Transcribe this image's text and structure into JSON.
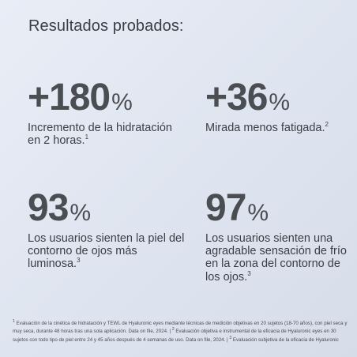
{
  "title": "Resultados probados:",
  "stats": [
    {
      "value": "+180",
      "unit": "%",
      "description": "Incremento de la hidratación en 2 horas.",
      "ref": "1"
    },
    {
      "value": "+36",
      "unit": "%",
      "description": "Mirada menos fatigada.",
      "ref": "2"
    },
    {
      "value": "93",
      "unit": "%",
      "description": "Los usuarios sienten la piel del contorno de ojos más luminosa.",
      "ref": "3"
    },
    {
      "value": "97",
      "unit": "%",
      "description": "Los usuarios sienten una agradable sensación de frío en la zona del contorno de los ojos.",
      "ref": "3"
    }
  ],
  "footnotes": {
    "n1_ref": "1",
    "n1_text": "Evaluación de la cinética de hidratación y TEWL de Hyaluronic eyes mediante técnicas de medición objetivas en 20 sujetos (18-70 años), con piel seca y muy seca, durante 48 horas tras una sola aplicación. Data on file, 2024. |",
    "n2_ref": "2",
    "n2_text": "Evaluación objetiva e instrumental de la eficacia de Hyaluronic eyes en 30 sujetos con todo tipo de piel entre 24 y 45 años después de 4 semanas de uso. Data on file, 2024. |",
    "n3_ref": "3",
    "n3_text": "Evaluación subjetiva de la eficacia de Hyaluronic"
  },
  "colors": {
    "background": "#e3e8f2",
    "text": "#3b3e44",
    "number": "#4a4d52"
  }
}
